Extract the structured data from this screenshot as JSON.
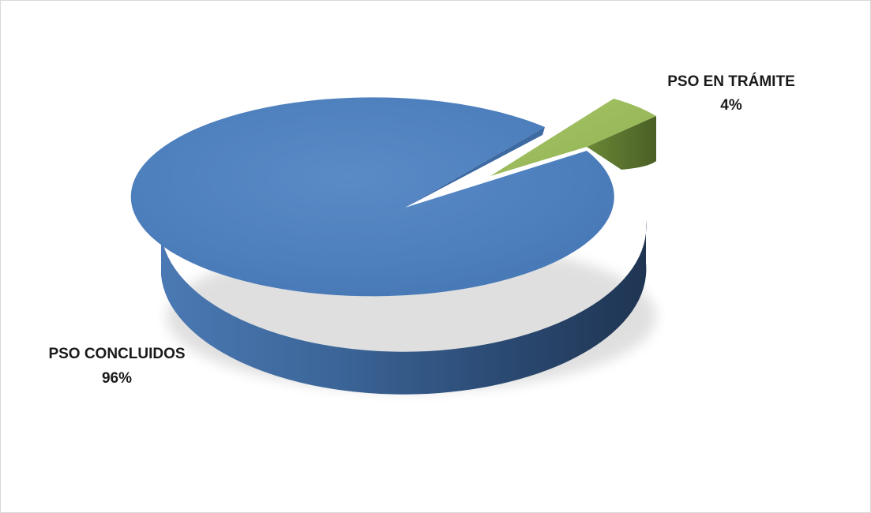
{
  "chart_data": {
    "type": "pie",
    "style": "3d-exploded",
    "slices": [
      {
        "label": "PSO CONCLUIDOS",
        "value": 96,
        "value_label": "96%",
        "color": "#4f81bd",
        "exploded": false
      },
      {
        "label": "PSO EN TRÁMITE",
        "value": 4,
        "value_label": "4%",
        "color": "#9bbb59",
        "exploded": true
      }
    ],
    "legend": "none"
  }
}
